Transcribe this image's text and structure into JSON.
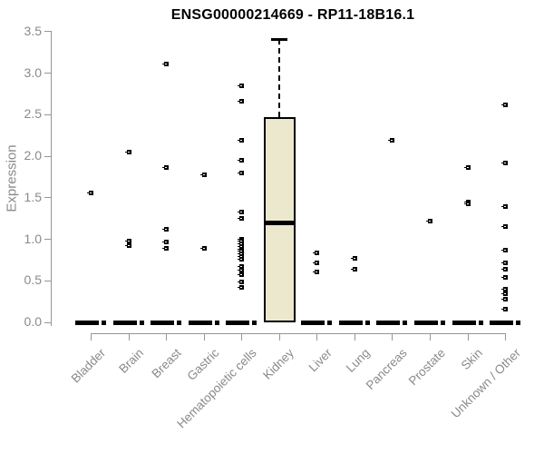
{
  "chart_data": {
    "type": "boxplot",
    "title": "ENSG00000214669 - RP11-18B16.1",
    "ylabel": "Expression",
    "xlabel": "",
    "ylim": [
      0.0,
      3.5
    ],
    "yticks": [
      0.0,
      0.5,
      1.0,
      1.5,
      2.0,
      2.5,
      3.0,
      3.5
    ],
    "grid": false,
    "legend": "none",
    "categories": [
      "Bladder",
      "Brain",
      "Breast",
      "Gastric",
      "Hematopoietic cells",
      "Kidney",
      "Liver",
      "Lung",
      "Pancreas",
      "Prostate",
      "Skin",
      "Unknown / Other"
    ],
    "series": [
      {
        "category": "Bladder",
        "median": 0.0,
        "outliers": [
          1.56
        ]
      },
      {
        "category": "Brain",
        "median": 0.0,
        "outliers": [
          2.06,
          0.98,
          0.93
        ]
      },
      {
        "category": "Breast",
        "median": 0.0,
        "outliers": [
          3.12,
          1.87,
          1.13,
          0.97,
          0.9
        ]
      },
      {
        "category": "Gastric",
        "median": 0.0,
        "outliers": [
          1.78,
          0.9
        ]
      },
      {
        "category": "Hematopoietic cells",
        "median": 0.0,
        "outliers": [
          2.86,
          2.67,
          2.2,
          1.96,
          1.81,
          1.33,
          1.26,
          1.01,
          0.98,
          0.95,
          0.92,
          0.89,
          0.86,
          0.83,
          0.8,
          0.77,
          0.68,
          0.63,
          0.58,
          0.49,
          0.43
        ]
      },
      {
        "category": "Kidney",
        "box": {
          "q1": 0.0,
          "median": 1.2,
          "q3": 2.47,
          "whisker_high": 3.41
        },
        "outliers": []
      },
      {
        "category": "Liver",
        "median": 0.0,
        "outliers": [
          0.84,
          0.72,
          0.61
        ]
      },
      {
        "category": "Lung",
        "median": 0.0,
        "outliers": [
          0.78,
          0.64
        ]
      },
      {
        "category": "Pancreas",
        "median": 0.0,
        "outliers": [
          2.2
        ]
      },
      {
        "category": "Prostate",
        "median": 0.0,
        "outliers": [
          1.22
        ]
      },
      {
        "category": "Skin",
        "median": 0.0,
        "outliers": [
          1.87,
          1.45,
          1.43
        ]
      },
      {
        "category": "Unknown / Other",
        "median": 0.0,
        "outliers": [
          2.62,
          1.92,
          1.4,
          1.16,
          0.87,
          0.72,
          0.64,
          0.55,
          0.41,
          0.35,
          0.28,
          0.16
        ]
      }
    ],
    "colors": {
      "box_fill": "#ece8ce",
      "box_border": "#000000",
      "point": "#000000",
      "axis": "#969696",
      "text": "#8a8a8a",
      "title": "#000000"
    }
  }
}
